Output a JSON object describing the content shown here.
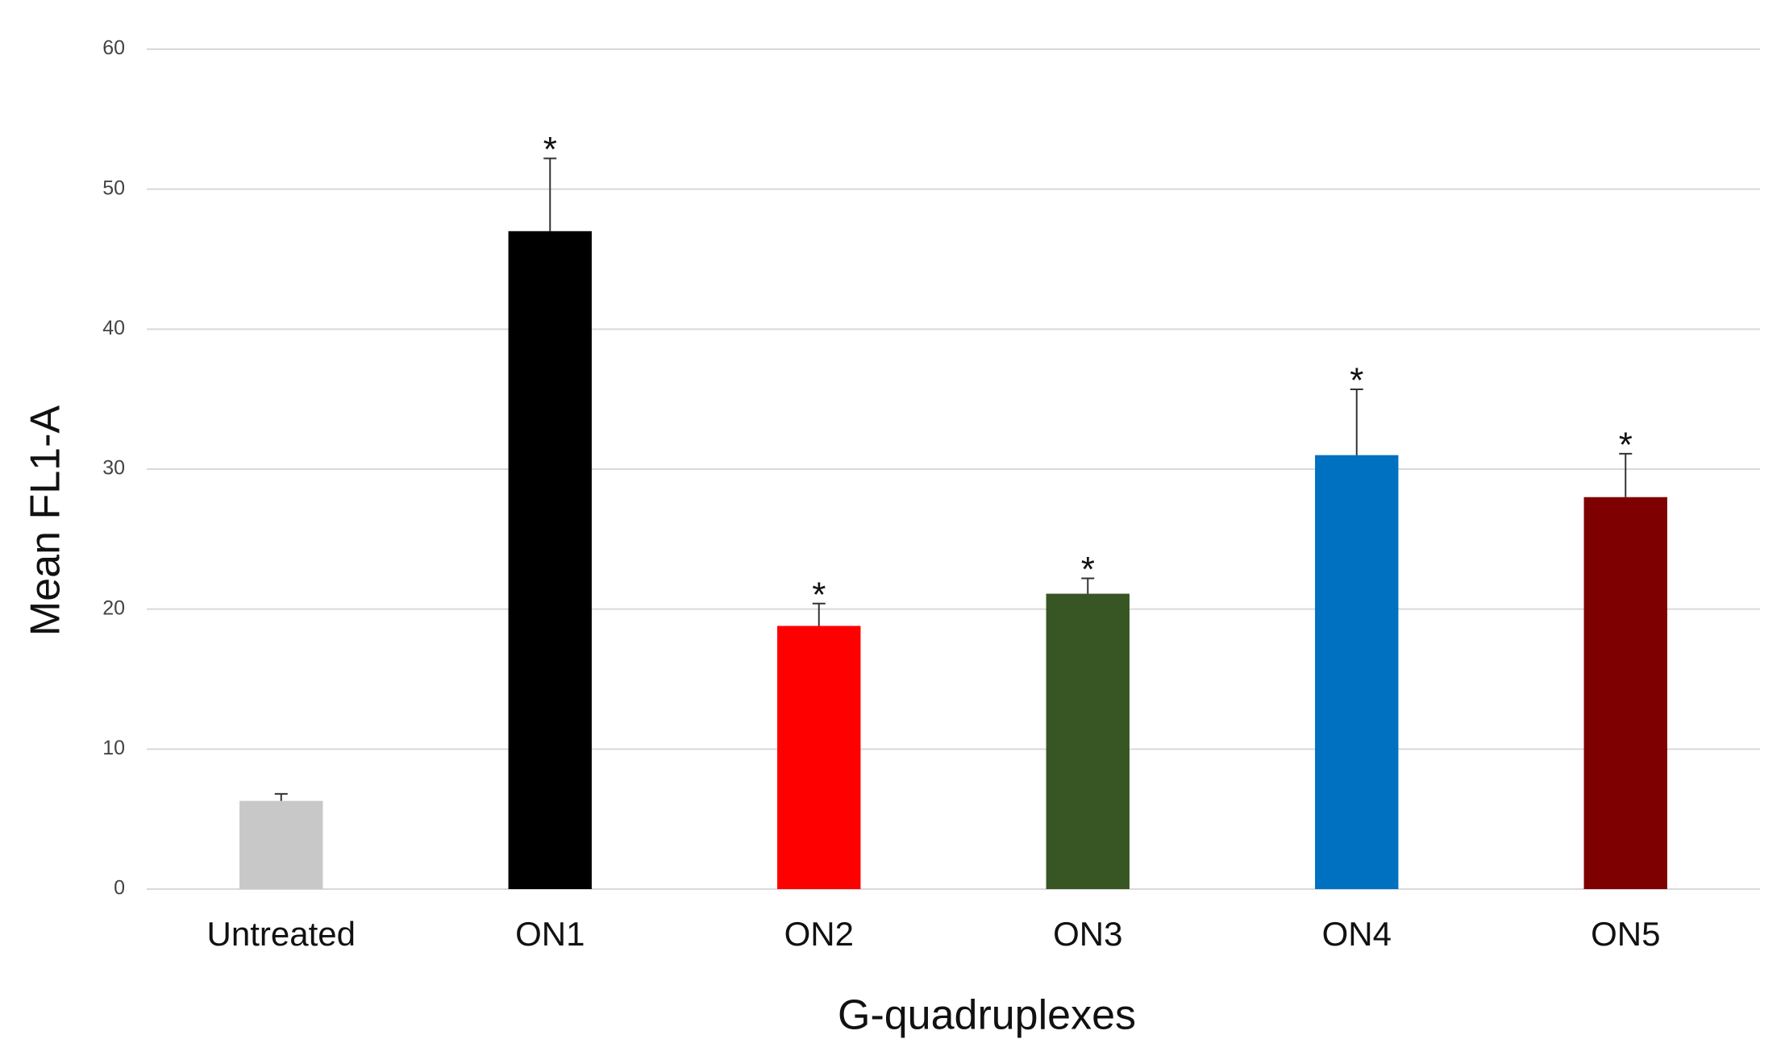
{
  "chart_data": {
    "type": "bar",
    "x_label": "G-quadruplexes",
    "y_label": "Mean FL1-A",
    "categories": [
      "Untreated",
      "ON1",
      "ON2",
      "ON3",
      "ON4",
      "ON5"
    ],
    "values": [
      6.3,
      47,
      18.8,
      21.1,
      31,
      28
    ],
    "errors": [
      0.5,
      5.2,
      1.6,
      1.1,
      4.7,
      3.1
    ],
    "annotations": [
      null,
      "*",
      "*",
      "*",
      "*",
      "*"
    ],
    "colors": [
      "#c8c8c8",
      "#000000",
      "#ff0000",
      "#375623",
      "#0070c0",
      "#7f0000"
    ],
    "ylim": [
      0,
      60
    ],
    "yticks": [
      0,
      10,
      20,
      30,
      40,
      50,
      60
    ],
    "grid": true
  }
}
